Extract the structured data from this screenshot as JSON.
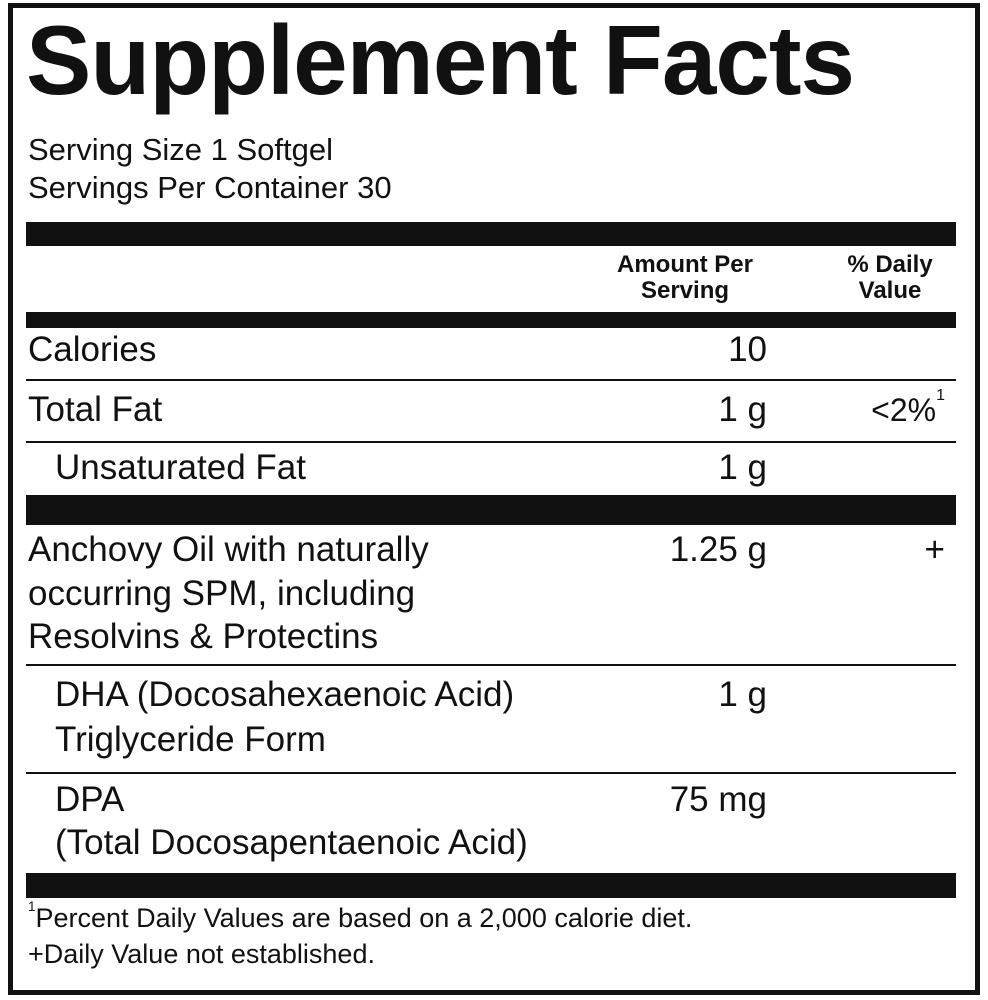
{
  "title": "Supplement Facts",
  "serving": {
    "size": "Serving Size 1 Softgel",
    "per_container": "Servings Per Container 30"
  },
  "header": {
    "amount": [
      "Amount Per",
      "Serving"
    ],
    "daily_value": [
      "% Daily",
      "Value"
    ]
  },
  "rows": [
    {
      "name": [
        "Calories"
      ],
      "amount": "10"
    },
    {
      "name": [
        "Total Fat"
      ],
      "amount": "1 g",
      "daily_value": "<2%",
      "note": "1"
    },
    {
      "name": [
        "Unsaturated Fat"
      ],
      "amount": "1 g"
    },
    {
      "name": [
        "Anchovy Oil with naturally",
        "occurring SPM, including",
        "Resolvins & Protectins"
      ],
      "amount": "1.25 g",
      "daily_value": "+"
    },
    {
      "name": [
        "DHA (Docosahexaenoic Acid)",
        "Triglyceride Form"
      ],
      "amount": "1 g"
    },
    {
      "name": [
        "DPA",
        "(Total Docosapentaenoic Acid)"
      ],
      "amount": "75 mg"
    }
  ],
  "footnotes": [
    {
      "mark": "1",
      "text": "Percent Daily Values are based on a 2,000 calorie diet."
    },
    {
      "text": "+Daily Value not established."
    }
  ]
}
